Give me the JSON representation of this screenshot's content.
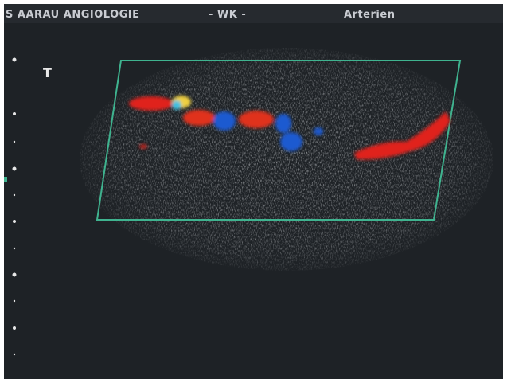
{
  "header": {
    "left": "S AARAU ANGIOLOGIE",
    "center": "- WK -",
    "right": "Arterien"
  },
  "marker": "T"
}
